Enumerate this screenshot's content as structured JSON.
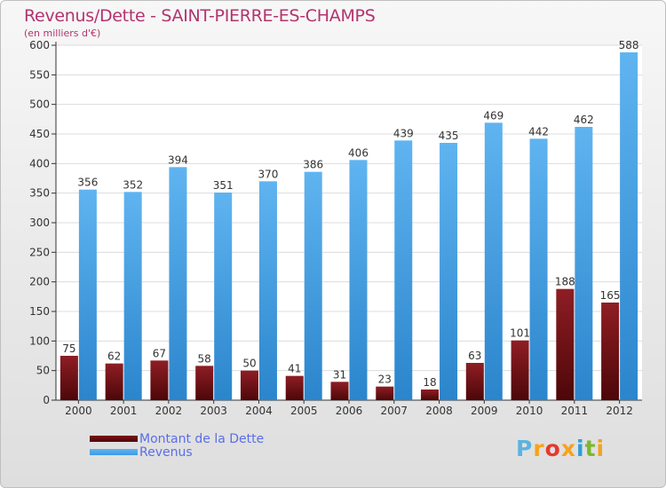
{
  "chart_data": {
    "type": "bar",
    "title": "Revenus/Dette - SAINT-PIERRE-ES-CHAMPS",
    "subtitle": "(en milliers d'€)",
    "categories": [
      "2000",
      "2001",
      "2002",
      "2003",
      "2004",
      "2005",
      "2006",
      "2007",
      "2008",
      "2009",
      "2010",
      "2011",
      "2012"
    ],
    "series": [
      {
        "name": "Montant de la Dette",
        "color": "#7a1016",
        "values": [
          75,
          62,
          67,
          58,
          50,
          41,
          31,
          23,
          18,
          63,
          101,
          188,
          165
        ]
      },
      {
        "name": "Revenus",
        "color": "#3d9be3",
        "values": [
          356,
          352,
          394,
          351,
          370,
          386,
          406,
          439,
          435,
          469,
          442,
          462,
          588
        ]
      }
    ],
    "ylim": [
      0,
      600
    ],
    "yticks": [
      "0",
      "50",
      "100",
      "150",
      "200",
      "250",
      "300",
      "350",
      "400",
      "450",
      "500",
      "550",
      "600"
    ],
    "grid": true,
    "legend_position": "bottom-left"
  },
  "brand": {
    "letters": [
      "P",
      "r",
      "o",
      "x",
      "i",
      "t",
      "i"
    ],
    "colors": [
      "#5bb3e0",
      "#f7a21b",
      "#e5392c",
      "#f7a21b",
      "#2e9fd8",
      "#7cb82f",
      "#f7a21b"
    ]
  }
}
